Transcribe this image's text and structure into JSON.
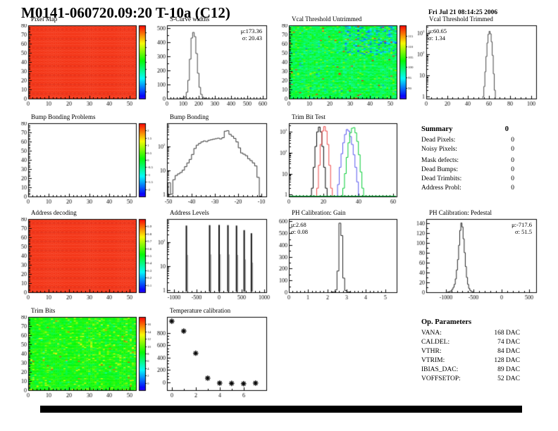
{
  "header": {
    "title": "M0141-060720.09:20 T-10a (C12)",
    "datetime": "Fri Jul 21 08:14:25 2006"
  },
  "summary": {
    "title": "Summary",
    "total": "0",
    "rows": [
      {
        "label": "Dead Pixels:",
        "value": "0"
      },
      {
        "label": "Noisy Pixels:",
        "value": "0"
      },
      {
        "label": "Mask defects:",
        "value": "0"
      },
      {
        "label": "Dead Bumps:",
        "value": "0"
      },
      {
        "label": "Dead Trimbits:",
        "value": "0"
      },
      {
        "label": "Address Probl:",
        "value": "0"
      }
    ]
  },
  "op_parameters": {
    "title": "Op. Parameters",
    "rows": [
      {
        "label": "VANA:",
        "value": "168 DAC"
      },
      {
        "label": "CALDEL:",
        "value": "74 DAC"
      },
      {
        "label": "VTHR:",
        "value": "84 DAC"
      },
      {
        "label": "VTRIM:",
        "value": "128 DAC"
      },
      {
        "label": "IBIAS_DAC:",
        "value": "89 DAC"
      },
      {
        "label": "VOFFSETOP:",
        "value": "52 DAC"
      }
    ]
  },
  "chart_data": [
    {
      "name": "pixel-map",
      "type": "heatmap",
      "title": "Pixel Map",
      "pattern": "uniform-red",
      "seed": 5,
      "xlim": [
        0,
        53
      ],
      "xticks": [
        0,
        10,
        20,
        30,
        40,
        50
      ],
      "xsub": 5,
      "ylim": [
        0,
        80
      ],
      "yticks": [
        0,
        10,
        20,
        30,
        40,
        50,
        60,
        70,
        80
      ],
      "ysub": 5,
      "colorbar": {
        "labels": []
      }
    },
    {
      "name": "scurve-widths",
      "type": "histogram",
      "title": "S-Curve widths",
      "stats": [
        "μ:173.36",
        "σ: 20.43"
      ],
      "color": "#444444",
      "xlim": [
        0,
        620
      ],
      "xticks": [
        0,
        100,
        200,
        300,
        400,
        500,
        600
      ],
      "xsub": 5,
      "ylim": [
        0,
        520
      ],
      "yticks": [
        0,
        100,
        200,
        300,
        400,
        500
      ],
      "ysub": 2,
      "bins": {
        "start": 80,
        "width": 10,
        "counts": [
          0,
          2,
          5,
          12,
          45,
          130,
          280,
          430,
          470,
          440,
          320,
          180,
          80,
          30,
          10,
          3,
          1
        ]
      }
    },
    {
      "name": "vcal-threshold-untrimmed",
      "type": "heatmap",
      "title": "Vcal Threshold Untrimmed",
      "pattern": "vcal-noise",
      "seed": 11,
      "xlim": [
        0,
        53
      ],
      "xticks": [
        0,
        10,
        20,
        30,
        40,
        50
      ],
      "xsub": 5,
      "ylim": [
        0,
        80
      ],
      "yticks": [
        0,
        10,
        20,
        30,
        40,
        50,
        60,
        70,
        80
      ],
      "ysub": 5,
      "colorbar": {
        "labels": [
          "115",
          "110",
          "105",
          "100",
          "95",
          "90"
        ]
      }
    },
    {
      "name": "vcal-threshold-trimmed",
      "type": "histogram",
      "title": "Vcal Threshold Trimmed",
      "stats": [
        "μ:60.65",
        "σ: 1.34"
      ],
      "color": "#444444",
      "ylog": true,
      "xlim": [
        0,
        105
      ],
      "xticks": [
        0,
        20,
        40,
        60,
        80,
        100
      ],
      "xsub": 4,
      "ylim": [
        0.8,
        2400
      ],
      "bins": {
        "start": 54,
        "width": 1,
        "counts": [
          1,
          3,
          15,
          80,
          350,
          900,
          1250,
          950,
          400,
          90,
          12,
          2
        ]
      }
    },
    {
      "name": "bump-bonding-problems",
      "type": "heatmap",
      "title": "Bump Bonding Problems",
      "pattern": "empty",
      "xlim": [
        0,
        53
      ],
      "xticks": [
        0,
        10,
        20,
        30,
        40,
        50
      ],
      "xsub": 5,
      "ylim": [
        0,
        80
      ],
      "yticks": [
        0,
        10,
        20,
        30,
        40,
        50,
        60,
        70,
        80
      ],
      "ysub": 5,
      "colorbar": {
        "labels": [
          "2",
          "1.5",
          "1",
          "0.5",
          "0",
          "-0.5",
          "-1",
          "-1.5",
          "-2"
        ]
      }
    },
    {
      "name": "bump-bonding",
      "type": "histogram",
      "title": "Bump Bonding",
      "color": "#333333",
      "ylog": true,
      "xlim": [
        -50.5,
        -8
      ],
      "xticks": [
        -50,
        -40,
        -30,
        -20,
        -10
      ],
      "xsub": 5,
      "ylim": [
        0.8,
        900
      ],
      "bins": {
        "start": -50,
        "width": 1,
        "counts": [
          3,
          1,
          4,
          6,
          7,
          8,
          10,
          14,
          20,
          28,
          45,
          80,
          110,
          130,
          150,
          165,
          155,
          175,
          185,
          195,
          205,
          215,
          200,
          225,
          420,
          440,
          310,
          260,
          210,
          150,
          85,
          52,
          46,
          40,
          30,
          25,
          20,
          15,
          5,
          0
        ]
      }
    },
    {
      "name": "trim-bit-test",
      "type": "histogram-multi",
      "title": "Trim Bit Test",
      "ylog": true,
      "xlim": [
        0,
        62
      ],
      "xticks": [
        0,
        20,
        40,
        60
      ],
      "xsub": 10,
      "ylim": [
        0.8,
        2600
      ],
      "baseline_color": "#00bb33",
      "series": [
        {
          "name": "series-black",
          "color": "#000000",
          "bins": {
            "start": 13,
            "width": 1,
            "counts": [
              2,
              20,
              200,
              1000,
              1700,
              1000,
              200,
              20,
              2
            ]
          }
        },
        {
          "name": "series-red",
          "color": "#ee4444",
          "bins": {
            "start": 16,
            "width": 1,
            "counts": [
              2,
              25,
              250,
              1100,
              1800,
              1100,
              250,
              25,
              2
            ]
          }
        },
        {
          "name": "series-blue",
          "color": "#5555ee",
          "bins": {
            "start": 28,
            "width": 1,
            "counts": [
              3,
              20,
              90,
              300,
              750,
              1300,
              1100,
              600,
              250,
              80,
              20,
              4
            ]
          }
        },
        {
          "name": "series-green",
          "color": "#00cc33",
          "bins": {
            "start": 31,
            "width": 1,
            "counts": [
              2,
              10,
              60,
              300,
              900,
              1500,
              1600,
              900,
              350,
              80,
              12,
              2
            ]
          }
        }
      ]
    },
    {
      "name": "address-decoding",
      "type": "heatmap",
      "title": "Address decoding",
      "pattern": "uniform-red",
      "seed": 7,
      "xlim": [
        0,
        53
      ],
      "xticks": [
        0,
        10,
        20,
        30,
        40,
        50
      ],
      "xsub": 5,
      "ylim": [
        0,
        80
      ],
      "yticks": [
        0,
        10,
        20,
        30,
        40,
        50,
        60,
        70,
        80
      ],
      "ysub": 5,
      "colorbar": {
        "labels": [
          "0.9",
          "0.8",
          "0.7",
          "0.6",
          "0.5",
          "0.4",
          "0.3",
          "0.2",
          "0.1"
        ]
      }
    },
    {
      "name": "address-levels",
      "type": "spikes",
      "title": "Address Levels",
      "color": "#111111",
      "ylog": true,
      "xlim": [
        -1150,
        1050
      ],
      "xticks": [
        -1000,
        -500,
        0,
        500,
        1000
      ],
      "xsub": 5,
      "ylim": [
        0.8,
        900
      ],
      "spikes": [
        [
          -720,
          480
        ],
        [
          -205,
          500
        ],
        [
          5,
          510
        ],
        [
          200,
          500
        ],
        [
          390,
          480
        ],
        [
          560,
          310
        ],
        [
          720,
          230
        ]
      ]
    },
    {
      "name": "ph-calibration-gain",
      "type": "histogram",
      "title": "PH Calibration: Gain",
      "stats": [
        "μ:2.68",
        "σ: 0.08"
      ],
      "color": "#222222",
      "xlim": [
        0,
        5.6
      ],
      "xticks": [
        0,
        1,
        2,
        3,
        4,
        5
      ],
      "xsub": 5,
      "ylim": [
        0,
        620
      ],
      "yticks": [
        0,
        100,
        200,
        300,
        400,
        500,
        600
      ],
      "ysub": 2,
      "bins": {
        "start": 2.2,
        "width": 0.1,
        "counts": [
          0,
          1,
          20,
          180,
          585,
          480,
          120,
          15,
          2,
          0
        ]
      }
    },
    {
      "name": "ph-calibration-pedestal",
      "type": "histogram",
      "title": "PH Calibration: Pedestal",
      "stats": [
        "μ:-717.6",
        "σ: 51.5"
      ],
      "color": "#222222",
      "xlim": [
        -1350,
        620
      ],
      "xticks": [
        -1000,
        -500,
        0,
        500
      ],
      "xsub": 5,
      "ylim": [
        0,
        148
      ],
      "yticks": [
        0,
        20,
        40,
        60,
        80,
        100,
        120,
        140
      ],
      "ysub": 2,
      "bins": {
        "start": -970,
        "width": 20,
        "counts": [
          1,
          1,
          2,
          3,
          6,
          10,
          16,
          27,
          45,
          66,
          95,
          125,
          140,
          132,
          108,
          80,
          52,
          30,
          16,
          8,
          4,
          2,
          1,
          0
        ]
      }
    },
    {
      "name": "trim-bits",
      "type": "heatmap",
      "title": "Trim Bits",
      "pattern": "trim-noise",
      "seed": 23,
      "xlim": [
        0,
        53
      ],
      "xticks": [
        0,
        10,
        20,
        30,
        40,
        50
      ],
      "xsub": 5,
      "ylim": [
        0,
        80
      ],
      "yticks": [
        0,
        10,
        20,
        30,
        40,
        50,
        60,
        70,
        80
      ],
      "ysub": 5,
      "colorbar": {
        "labels": [
          "16",
          "14",
          "12",
          "10",
          "8",
          "6",
          "4",
          "2",
          "0"
        ]
      }
    },
    {
      "name": "temperature-calibration",
      "type": "scatter",
      "title": "Temperature calibration",
      "marker": "asterisk",
      "xlim": [
        -0.4,
        7.9
      ],
      "xticks": [
        0,
        2,
        4,
        6
      ],
      "xsub": 2,
      "ylim": [
        -130,
        1060
      ],
      "yticks": [
        0,
        200,
        400,
        600,
        800
      ],
      "ysub": 4,
      "points": [
        [
          0,
          990
        ],
        [
          1,
          830
        ],
        [
          2,
          470
        ],
        [
          3,
          65
        ],
        [
          4,
          -15
        ],
        [
          5,
          -20
        ],
        [
          6,
          -25
        ],
        [
          7,
          -15
        ]
      ]
    }
  ]
}
